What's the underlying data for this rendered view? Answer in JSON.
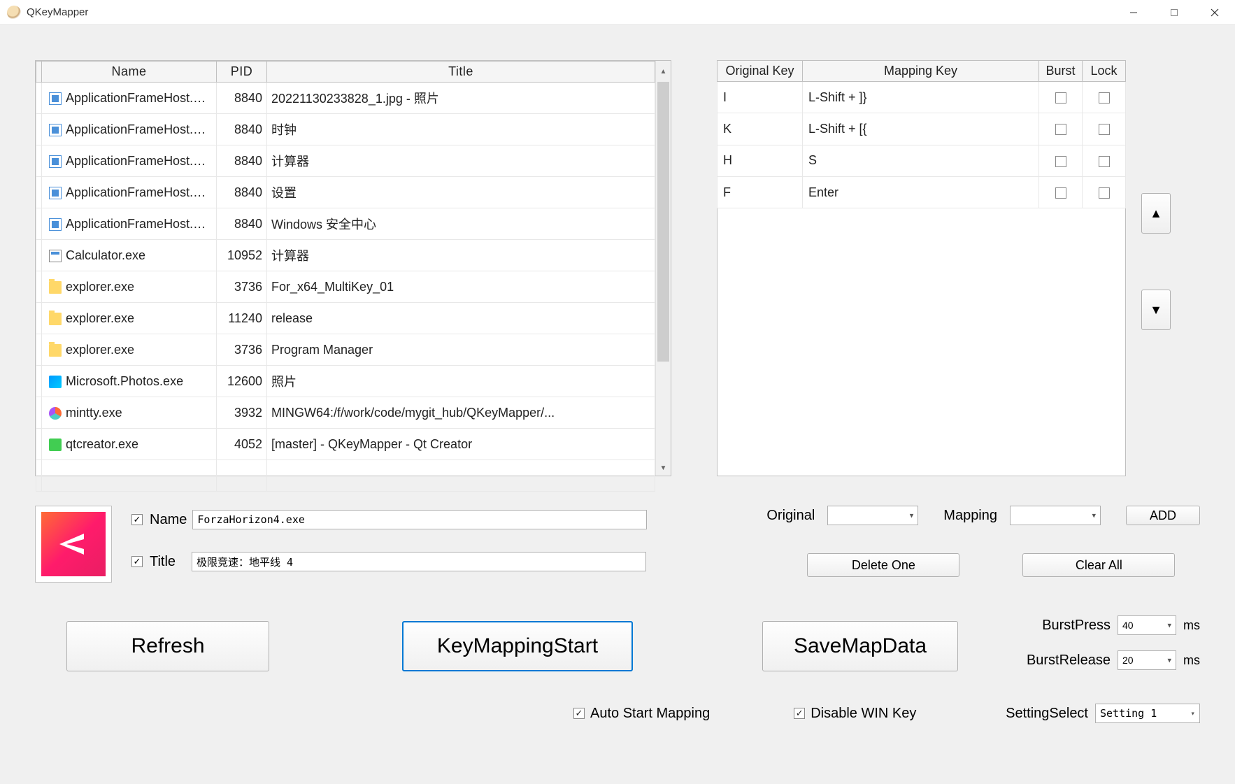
{
  "window": {
    "title": "QKeyMapper"
  },
  "process_table": {
    "headers": {
      "name": "Name",
      "pid": "PID",
      "title": "Title"
    },
    "rows": [
      {
        "icon": "generic",
        "name": "ApplicationFrameHost.exe",
        "pid": "8840",
        "title": "20221130233828_1.jpg - 照片"
      },
      {
        "icon": "generic",
        "name": "ApplicationFrameHost.exe",
        "pid": "8840",
        "title": "时钟"
      },
      {
        "icon": "generic",
        "name": "ApplicationFrameHost.exe",
        "pid": "8840",
        "title": "计算器"
      },
      {
        "icon": "generic",
        "name": "ApplicationFrameHost.exe",
        "pid": "8840",
        "title": "设置"
      },
      {
        "icon": "generic",
        "name": "ApplicationFrameHost.exe",
        "pid": "8840",
        "title": "Windows 安全中心"
      },
      {
        "icon": "calc",
        "name": "Calculator.exe",
        "pid": "10952",
        "title": "计算器"
      },
      {
        "icon": "folder",
        "name": "explorer.exe",
        "pid": "3736",
        "title": "For_x64_MultiKey_01"
      },
      {
        "icon": "folder",
        "name": "explorer.exe",
        "pid": "11240",
        "title": "release"
      },
      {
        "icon": "folder",
        "name": "explorer.exe",
        "pid": "3736",
        "title": "Program Manager"
      },
      {
        "icon": "photos",
        "name": "Microsoft.Photos.exe",
        "pid": "12600",
        "title": "照片"
      },
      {
        "icon": "mintty",
        "name": "mintty.exe",
        "pid": "3932",
        "title": "MINGW64:/f/work/code/mygit_hub/QKeyMapper/..."
      },
      {
        "icon": "qt",
        "name": "qtcreator.exe",
        "pid": "4052",
        "title": "[master] - QKeyMapper - Qt Creator"
      }
    ]
  },
  "mapping_table": {
    "headers": {
      "orig": "Original Key",
      "map": "Mapping Key",
      "burst": "Burst",
      "lock": "Lock"
    },
    "rows": [
      {
        "orig": "I",
        "map": "L-Shift + ]}"
      },
      {
        "orig": "K",
        "map": "L-Shift + [{"
      },
      {
        "orig": "H",
        "map": "S"
      },
      {
        "orig": "F",
        "map": "Enter"
      }
    ]
  },
  "selected": {
    "name_label": "Name",
    "title_label": "Title",
    "name_value": "ForzaHorizon4.exe",
    "title_value": "极限竞速：地平线 4"
  },
  "labels": {
    "original": "Original",
    "mapping": "Mapping",
    "add": "ADD",
    "delete_one": "Delete One",
    "clear_all": "Clear All",
    "refresh": "Refresh",
    "start": "KeyMappingStart",
    "save": "SaveMapData",
    "burst_press": "BurstPress",
    "burst_release": "BurstRelease",
    "ms": "ms",
    "auto_start": "Auto Start Mapping",
    "disable_win": "Disable WIN Key",
    "setting_select": "SettingSelect"
  },
  "values": {
    "burst_press": "40",
    "burst_release": "20",
    "setting": "Setting 1"
  },
  "colors": {
    "window_bg": "#f0f0f0",
    "border": "#c0c0c0",
    "accent": "#0078d4",
    "forza_grad_a": "#ff6b35",
    "forza_grad_b": "#e91e63"
  }
}
